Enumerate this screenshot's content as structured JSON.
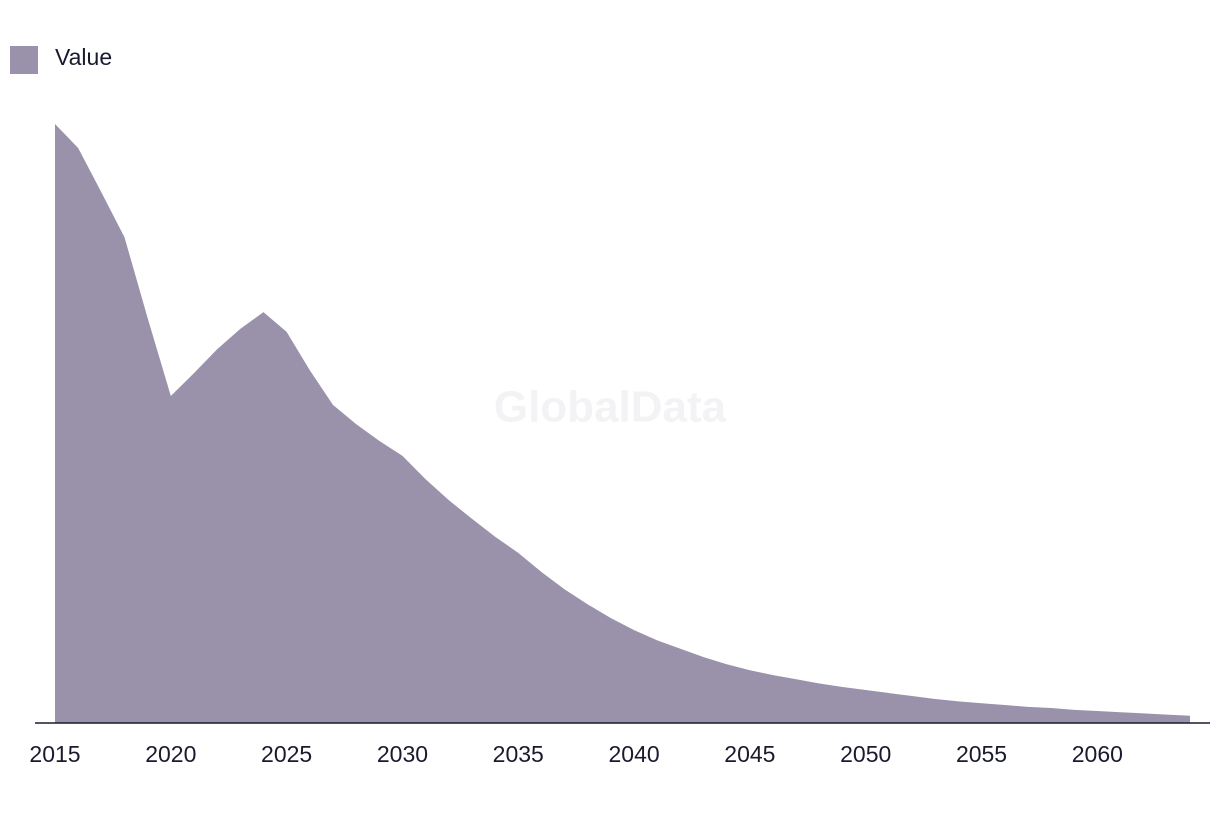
{
  "chart_data": {
    "type": "area",
    "watermark": "GlobalData",
    "x": [
      2015,
      2016,
      2017,
      2018,
      2019,
      2020,
      2021,
      2022,
      2023,
      2024,
      2025,
      2026,
      2027,
      2028,
      2029,
      2030,
      2031,
      2032,
      2033,
      2034,
      2035,
      2036,
      2037,
      2038,
      2039,
      2040,
      2041,
      2042,
      2043,
      2044,
      2045,
      2046,
      2047,
      2048,
      2049,
      2050,
      2051,
      2052,
      2053,
      2054,
      2055,
      2056,
      2057,
      2058,
      2059,
      2060,
      2061,
      2062,
      2063,
      2064
    ],
    "series": [
      {
        "name": "Value",
        "color": "#9a91aa",
        "values": [
          100,
          96,
          88.6,
          81.1,
          67.6,
          54.6,
          58.4,
          62.4,
          65.8,
          68.6,
          65.3,
          58.9,
          53.1,
          49.9,
          47.1,
          44.6,
          40.7,
          37.2,
          34.1,
          31.1,
          28.4,
          25.2,
          22.3,
          19.8,
          17.5,
          15.5,
          13.8,
          12.4,
          11.0,
          9.8,
          8.8,
          8.0,
          7.3,
          6.6,
          6.0,
          5.5,
          5.0,
          4.5,
          4.0,
          3.6,
          3.3,
          3.0,
          2.7,
          2.5,
          2.2,
          2.0,
          1.8,
          1.6,
          1.4,
          1.2
        ]
      }
    ],
    "xlim": [
      2015,
      2064
    ],
    "xticks": [
      2015,
      2020,
      2025,
      2030,
      2035,
      2040,
      2045,
      2050,
      2055,
      2060
    ],
    "ylim": [
      0,
      100
    ],
    "legend": "top-left"
  }
}
